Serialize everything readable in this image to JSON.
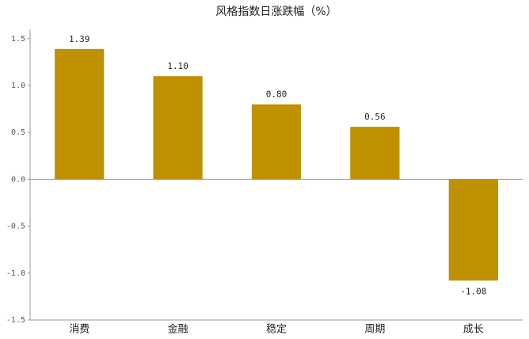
{
  "chart_data": {
    "type": "bar",
    "title": "风格指数日涨跌幅（%）",
    "categories": [
      "消费",
      "金融",
      "稳定",
      "周期",
      "成长"
    ],
    "values": [
      1.39,
      1.1,
      0.8,
      0.56,
      -1.08
    ],
    "value_labels": [
      "1.39",
      "1.10",
      "0.80",
      "0.56",
      "-1.08"
    ],
    "color": "#bf9000",
    "ylim": [
      -1.5,
      1.6
    ],
    "yticks": [
      1.5,
      {
        "value": 1,
        "label": "1.0"
      },
      0.5,
      {
        "value": 0,
        "label": "0.0"
      },
      -0.5,
      {
        "value": -1,
        "label": "-1.0"
      },
      -1.5
    ],
    "grid": false
  }
}
